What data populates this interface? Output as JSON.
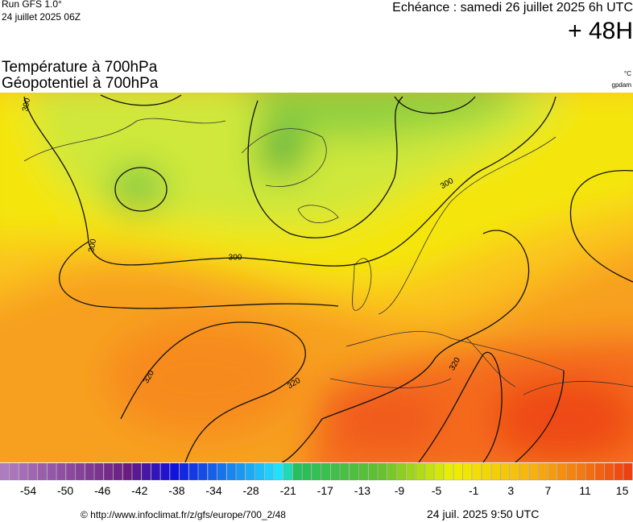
{
  "header": {
    "run": "Run GFS 1.0°",
    "date": "24 juillet 2025 06Z",
    "echeance": "Echéance : samedi 26 juillet 2025 6h UTC",
    "lead": "+ 48H",
    "title_temp": "Température à 700hPa",
    "title_geo": "Géopotentiel à 700hPa",
    "unit_temp": "°C",
    "unit_geo": "gpdam"
  },
  "map": {
    "contour_labels": [
      "300",
      "300",
      "300",
      "300",
      "320",
      "320",
      "320"
    ]
  },
  "colorbar": {
    "ticks": [
      -54,
      -50,
      -46,
      -42,
      -38,
      -34,
      -28,
      -21,
      -17,
      -13,
      -9,
      -5,
      -1,
      3,
      7,
      11,
      15
    ]
  },
  "footer": {
    "source": "© http://www.infoclimat.fr/z/gfs/europe/700_2/48",
    "timestamp": "24 juil. 2025  9:50 UTC"
  }
}
